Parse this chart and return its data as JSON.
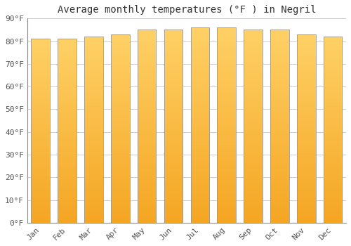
{
  "title": "Average monthly temperatures (°F ) in Negril",
  "months": [
    "Jan",
    "Feb",
    "Mar",
    "Apr",
    "May",
    "Jun",
    "Jul",
    "Aug",
    "Sep",
    "Oct",
    "Nov",
    "Dec"
  ],
  "values": [
    81,
    81,
    82,
    83,
    85,
    85,
    86,
    86,
    85,
    85,
    83,
    82
  ],
  "bar_color_bottom": "#F5A623",
  "bar_color_top": "#FFD166",
  "background_color": "#FFFFFF",
  "grid_color": "#CCCCCC",
  "ylim": [
    0,
    90
  ],
  "yticks": [
    0,
    10,
    20,
    30,
    40,
    50,
    60,
    70,
    80,
    90
  ],
  "ytick_labels": [
    "0°F",
    "10°F",
    "20°F",
    "30°F",
    "40°F",
    "50°F",
    "60°F",
    "70°F",
    "80°F",
    "90°F"
  ],
  "title_fontsize": 10,
  "tick_fontsize": 8,
  "bar_width": 0.7,
  "edge_color": "#999999"
}
